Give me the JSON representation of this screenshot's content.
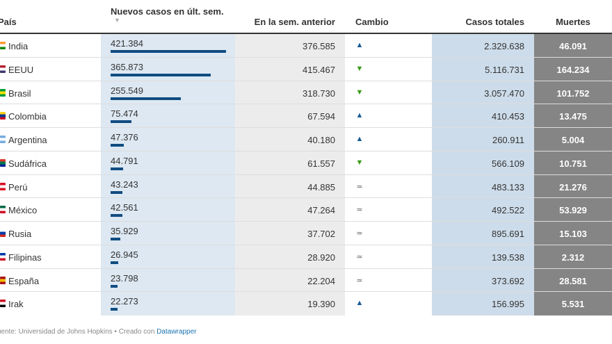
{
  "header": {
    "country": "País",
    "new_cases": "Nuevos casos en últ. sem.",
    "sort_indicator": "▼",
    "previous_week": "En la sem. anterior",
    "change": "Cambio",
    "total_cases": "Casos totales",
    "deaths": "Muertes"
  },
  "colors": {
    "bar": "#0f4c81",
    "arrow_up": "#1a5a96",
    "arrow_down": "#3a9a1a",
    "deaths_background": "#858585"
  },
  "chart_data": {
    "type": "table",
    "columns": [
      "País",
      "Nuevos casos en últ. sem.",
      "En la sem. anterior",
      "Cambio",
      "Casos totales",
      "Muertes"
    ],
    "bar_column": "Nuevos casos en últ. sem.",
    "bar_max": 421384,
    "rows": [
      {
        "country": "India",
        "flag": [
          "#ff9933",
          "#ffffff",
          "#138808"
        ],
        "new_cases": "421.384",
        "new_value": 421384,
        "previous": "376.585",
        "change": "up",
        "change_symbol": "▲",
        "total": "2.329.638",
        "deaths": "46.091"
      },
      {
        "country": "EEUU",
        "flag": [
          "#b22234",
          "#ffffff",
          "#3c3b6e"
        ],
        "new_cases": "365.873",
        "new_value": 365873,
        "previous": "415.467",
        "change": "down",
        "change_symbol": "▼",
        "total": "5.116.731",
        "deaths": "164.234"
      },
      {
        "country": "Brasil",
        "flag": [
          "#009c3b",
          "#ffdf00",
          "#009c3b"
        ],
        "new_cases": "255.549",
        "new_value": 255549,
        "previous": "318.730",
        "change": "down",
        "change_symbol": "▼",
        "total": "3.057.470",
        "deaths": "101.752"
      },
      {
        "country": "Colombia",
        "flag": [
          "#fcd116",
          "#003893",
          "#ce1126"
        ],
        "new_cases": "75.474",
        "new_value": 75474,
        "previous": "67.594",
        "change": "up",
        "change_symbol": "▲",
        "total": "410.453",
        "deaths": "13.475"
      },
      {
        "country": "Argentina",
        "flag": [
          "#74acdf",
          "#ffffff",
          "#74acdf"
        ],
        "new_cases": "47.376",
        "new_value": 47376,
        "previous": "40.180",
        "change": "up",
        "change_symbol": "▲",
        "total": "260.911",
        "deaths": "5.004"
      },
      {
        "country": "Sudáfrica",
        "flag": [
          "#de3831",
          "#007a4d",
          "#002395"
        ],
        "new_cases": "44.791",
        "new_value": 44791,
        "previous": "61.557",
        "change": "down",
        "change_symbol": "▼",
        "total": "566.109",
        "deaths": "10.751"
      },
      {
        "country": "Perú",
        "flag": [
          "#d91023",
          "#ffffff",
          "#d91023"
        ],
        "new_cases": "43.243",
        "new_value": 43243,
        "previous": "44.885",
        "change": "same",
        "change_symbol": "≃",
        "total": "483.133",
        "deaths": "21.276"
      },
      {
        "country": "México",
        "flag": [
          "#006847",
          "#ffffff",
          "#ce1126"
        ],
        "new_cases": "42.561",
        "new_value": 42561,
        "previous": "47.264",
        "change": "same",
        "change_symbol": "≃",
        "total": "492.522",
        "deaths": "53.929"
      },
      {
        "country": "Rusia",
        "flag": [
          "#ffffff",
          "#0039a6",
          "#d52b1e"
        ],
        "new_cases": "35.929",
        "new_value": 35929,
        "previous": "37.702",
        "change": "same",
        "change_symbol": "≃",
        "total": "895.691",
        "deaths": "15.103"
      },
      {
        "country": "Filipinas",
        "flag": [
          "#0038a8",
          "#ffffff",
          "#ce1126"
        ],
        "new_cases": "26.945",
        "new_value": 26945,
        "previous": "28.920",
        "change": "same",
        "change_symbol": "≃",
        "total": "139.538",
        "deaths": "2.312"
      },
      {
        "country": "España",
        "flag": [
          "#aa151b",
          "#f1bf00",
          "#aa151b"
        ],
        "new_cases": "23.798",
        "new_value": 23798,
        "previous": "22.204",
        "change": "same",
        "change_symbol": "≃",
        "total": "373.692",
        "deaths": "28.581"
      },
      {
        "country": "Irak",
        "flag": [
          "#ce1126",
          "#ffffff",
          "#000000"
        ],
        "new_cases": "22.273",
        "new_value": 22273,
        "previous": "19.390",
        "change": "up",
        "change_symbol": "▲",
        "total": "156.995",
        "deaths": "5.531"
      }
    ]
  },
  "footer": {
    "source_text": "uente: Universidad de Johns Hopkins • Creado con ",
    "link": "Datawrapper"
  }
}
